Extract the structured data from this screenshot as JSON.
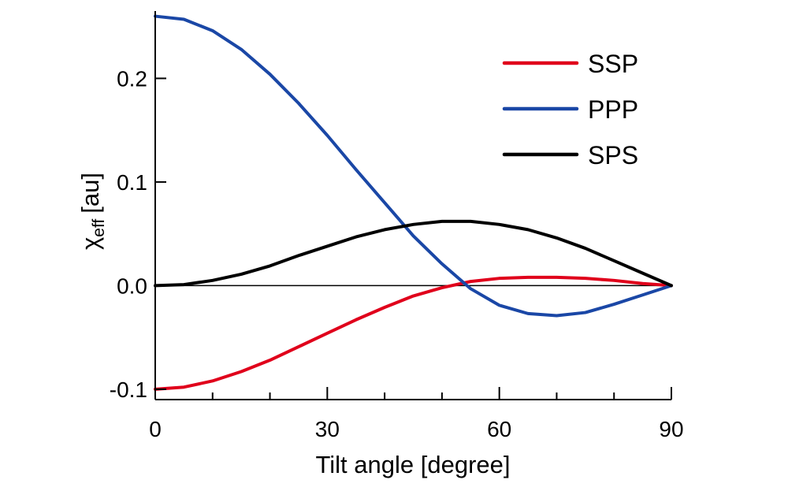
{
  "chart_data": {
    "type": "line",
    "title": "",
    "xlabel": "Tilt angle [degree]",
    "ylabel": {
      "main": "χ",
      "subscript": "eff",
      "unit": "[au]"
    },
    "xlim": [
      0,
      90
    ],
    "ylim": [
      -0.11,
      0.265
    ],
    "x_ticks": [
      0,
      30,
      60,
      90
    ],
    "x_tick_labels": [
      "0",
      "30",
      "60",
      "90"
    ],
    "x_minor_ticks": [
      10,
      20,
      40,
      50,
      70,
      80
    ],
    "y_ticks": [
      -0.1,
      0.0,
      0.1,
      0.2
    ],
    "y_tick_labels": [
      "-0.1",
      "0.0",
      "0.1",
      "0.2"
    ],
    "zero_line": true,
    "grid": false,
    "legend_position": "top-right",
    "x": [
      0,
      5,
      10,
      15,
      20,
      25,
      30,
      35,
      40,
      45,
      50,
      55,
      60,
      65,
      70,
      75,
      80,
      85,
      90
    ],
    "series": [
      {
        "name": "SSP",
        "color": "#e0001b",
        "values": [
          -0.1,
          -0.098,
          -0.092,
          -0.083,
          -0.072,
          -0.059,
          -0.046,
          -0.033,
          -0.021,
          -0.01,
          -0.002,
          0.004,
          0.007,
          0.008,
          0.008,
          0.007,
          0.005,
          0.002,
          0.0
        ]
      },
      {
        "name": "PPP",
        "color": "#1a47a6",
        "values": [
          0.26,
          0.257,
          0.246,
          0.228,
          0.204,
          0.176,
          0.145,
          0.112,
          0.08,
          0.048,
          0.021,
          -0.003,
          -0.019,
          -0.027,
          -0.029,
          -0.026,
          -0.018,
          -0.009,
          0.0
        ]
      },
      {
        "name": "SPS",
        "color": "#000000",
        "values": [
          0.0,
          0.001,
          0.005,
          0.011,
          0.019,
          0.029,
          0.038,
          0.047,
          0.054,
          0.059,
          0.062,
          0.062,
          0.059,
          0.054,
          0.046,
          0.036,
          0.024,
          0.012,
          0.0
        ]
      }
    ]
  }
}
